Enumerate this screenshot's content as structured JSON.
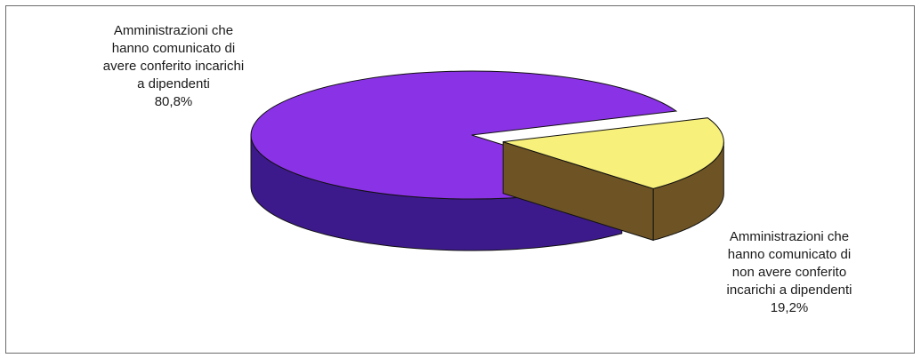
{
  "chart_data": {
    "type": "pie",
    "style": "3d-exploded",
    "slices": [
      {
        "label_lines": [
          "Amministrazioni che",
          "hanno comunicato di",
          "avere conferito incarichi",
          "a dipendenti"
        ],
        "value_label": "80,8%",
        "value": 80.8,
        "top_color": "#8a33e6",
        "side_color": "#3d1a8c"
      },
      {
        "label_lines": [
          "Amministrazioni che",
          "hanno comunicato di",
          "non avere conferito",
          "incarichi a dipendenti"
        ],
        "value_label": "19,2%",
        "value": 19.2,
        "top_color": "#f7f07a",
        "side_color": "#6e5424"
      }
    ]
  }
}
